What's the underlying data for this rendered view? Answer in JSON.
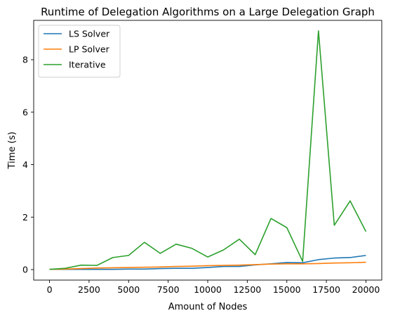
{
  "chart_data": {
    "type": "line",
    "title": "Runtime of Delegation Algorithms on a Large Delegation Graph",
    "xlabel": "Amount of Nodes",
    "ylabel": "Time (s)",
    "xlim": [
      -1000,
      21000
    ],
    "ylim": [
      -0.4,
      9.5
    ],
    "xticks": [
      0,
      2500,
      5000,
      7500,
      10000,
      12500,
      15000,
      17500,
      20000
    ],
    "xtick_labels": [
      "0",
      "2500",
      "5000",
      "7500",
      "10000",
      "12500",
      "15000",
      "17500",
      "20000"
    ],
    "yticks": [
      0,
      2,
      4,
      6,
      8
    ],
    "ytick_labels": [
      "0",
      "2",
      "4",
      "6",
      "8"
    ],
    "grid": false,
    "legend_position": "top-left",
    "x": [
      0,
      1000,
      2000,
      3000,
      4000,
      5000,
      6000,
      7000,
      8000,
      9000,
      10000,
      11000,
      12000,
      13000,
      14000,
      15000,
      16000,
      17000,
      18000,
      19000,
      20000
    ],
    "series": [
      {
        "name": "LS Solver",
        "color": "#1f77b4",
        "values": [
          0.01,
          0.01,
          0.01,
          0.01,
          0.01,
          0.02,
          0.02,
          0.04,
          0.05,
          0.05,
          0.08,
          0.12,
          0.12,
          0.18,
          0.22,
          0.27,
          0.26,
          0.38,
          0.44,
          0.46,
          0.54
        ]
      },
      {
        "name": "LP Solver",
        "color": "#ff7f0e",
        "values": [
          0.01,
          0.02,
          0.04,
          0.06,
          0.07,
          0.08,
          0.09,
          0.1,
          0.12,
          0.13,
          0.15,
          0.16,
          0.17,
          0.19,
          0.21,
          0.22,
          0.22,
          0.23,
          0.25,
          0.26,
          0.28
        ]
      },
      {
        "name": "Iterative",
        "color": "#2ca02c",
        "values": [
          0.01,
          0.05,
          0.17,
          0.16,
          0.46,
          0.54,
          1.04,
          0.62,
          0.97,
          0.81,
          0.48,
          0.75,
          1.16,
          0.57,
          1.95,
          1.6,
          0.31,
          9.1,
          1.69,
          2.62,
          1.45
        ]
      }
    ]
  }
}
